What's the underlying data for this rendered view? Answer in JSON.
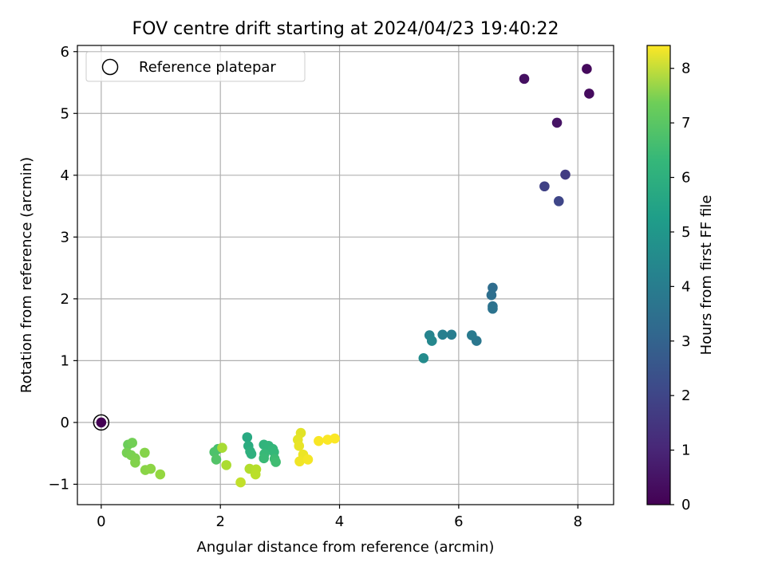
{
  "chart_data": {
    "type": "scatter",
    "title": "FOV centre drift starting at 2024/04/23 19:40:22",
    "xlabel": "Angular distance from reference (arcmin)",
    "ylabel": "Rotation from reference (arcmin)",
    "xlim": [
      -0.4,
      8.6
    ],
    "ylim": [
      -1.33,
      6.1
    ],
    "xticks": [
      0,
      2,
      4,
      6,
      8
    ],
    "xtick_labels": [
      "0",
      "2",
      "4",
      "6",
      "8"
    ],
    "yticks": [
      -1,
      0,
      1,
      2,
      3,
      4,
      5,
      6
    ],
    "ytick_labels": [
      "−1",
      "0",
      "1",
      "2",
      "3",
      "4",
      "5",
      "6"
    ],
    "grid": true,
    "legend": {
      "position": "top-left",
      "entries": [
        {
          "label": "Reference platepar",
          "marker": "open-circle"
        }
      ]
    },
    "colorbar": {
      "label": "Hours from first FF file",
      "colormap": "viridis",
      "range": [
        0,
        8.42
      ],
      "ticks": [
        0,
        1,
        2,
        3,
        4,
        5,
        6,
        7,
        8
      ],
      "tick_labels": [
        "0",
        "1",
        "2",
        "3",
        "4",
        "5",
        "6",
        "7",
        "8"
      ]
    },
    "reference_point": {
      "x": 0,
      "y": 0
    },
    "points": [
      {
        "x": 8.15,
        "y": 5.72,
        "hours": 0.2
      },
      {
        "x": 8.19,
        "y": 5.32,
        "hours": 0.25
      },
      {
        "x": 7.1,
        "y": 5.56,
        "hours": 0.35
      },
      {
        "x": 7.65,
        "y": 4.85,
        "hours": 0.45
      },
      {
        "x": 7.79,
        "y": 4.01,
        "hours": 1.5
      },
      {
        "x": 7.44,
        "y": 3.82,
        "hours": 1.65
      },
      {
        "x": 7.68,
        "y": 3.58,
        "hours": 1.8
      },
      {
        "x": 6.57,
        "y": 2.18,
        "hours": 3.0
      },
      {
        "x": 6.55,
        "y": 2.06,
        "hours": 3.05
      },
      {
        "x": 6.57,
        "y": 1.88,
        "hours": 3.15
      },
      {
        "x": 6.57,
        "y": 1.84,
        "hours": 3.2
      },
      {
        "x": 6.3,
        "y": 1.32,
        "hours": 3.35
      },
      {
        "x": 6.22,
        "y": 1.41,
        "hours": 3.45
      },
      {
        "x": 5.88,
        "y": 1.42,
        "hours": 3.55
      },
      {
        "x": 5.73,
        "y": 1.42,
        "hours": 3.65
      },
      {
        "x": 5.51,
        "y": 1.41,
        "hours": 3.8
      },
      {
        "x": 5.55,
        "y": 1.32,
        "hours": 3.9
      },
      {
        "x": 5.41,
        "y": 1.04,
        "hours": 4.05
      },
      {
        "x": 0.0,
        "y": 0.0,
        "hours": 0.0
      },
      {
        "x": 2.45,
        "y": -0.24,
        "hours": 5.1
      },
      {
        "x": 2.47,
        "y": -0.38,
        "hours": 5.2
      },
      {
        "x": 2.5,
        "y": -0.47,
        "hours": 5.3
      },
      {
        "x": 2.52,
        "y": -0.51,
        "hours": 5.35
      },
      {
        "x": 2.73,
        "y": -0.36,
        "hours": 5.45
      },
      {
        "x": 2.81,
        "y": -0.38,
        "hours": 5.5
      },
      {
        "x": 2.88,
        "y": -0.43,
        "hours": 5.55
      },
      {
        "x": 2.9,
        "y": -0.48,
        "hours": 5.6
      },
      {
        "x": 2.74,
        "y": -0.51,
        "hours": 5.65
      },
      {
        "x": 2.73,
        "y": -0.58,
        "hours": 5.7
      },
      {
        "x": 2.91,
        "y": -0.59,
        "hours": 5.75
      },
      {
        "x": 2.93,
        "y": -0.64,
        "hours": 5.8
      },
      {
        "x": 1.96,
        "y": -0.43,
        "hours": 5.9
      },
      {
        "x": 1.9,
        "y": -0.48,
        "hours": 6.0
      },
      {
        "x": 1.93,
        "y": -0.6,
        "hours": 6.1
      },
      {
        "x": 0.45,
        "y": -0.36,
        "hours": 6.5
      },
      {
        "x": 0.52,
        "y": -0.33,
        "hours": 6.6
      },
      {
        "x": 0.43,
        "y": -0.49,
        "hours": 6.65
      },
      {
        "x": 0.5,
        "y": -0.53,
        "hours": 6.7
      },
      {
        "x": 0.57,
        "y": -0.58,
        "hours": 6.75
      },
      {
        "x": 0.57,
        "y": -0.65,
        "hours": 6.8
      },
      {
        "x": 0.73,
        "y": -0.49,
        "hours": 6.85
      },
      {
        "x": 0.74,
        "y": -0.77,
        "hours": 6.9
      },
      {
        "x": 0.83,
        "y": -0.75,
        "hours": 6.95
      },
      {
        "x": 0.99,
        "y": -0.84,
        "hours": 7.05
      },
      {
        "x": 2.03,
        "y": -0.41,
        "hours": 7.3
      },
      {
        "x": 2.1,
        "y": -0.69,
        "hours": 7.35
      },
      {
        "x": 2.49,
        "y": -0.75,
        "hours": 7.45
      },
      {
        "x": 2.6,
        "y": -0.76,
        "hours": 7.5
      },
      {
        "x": 2.59,
        "y": -0.84,
        "hours": 7.55
      },
      {
        "x": 2.34,
        "y": -0.97,
        "hours": 7.65
      },
      {
        "x": 3.35,
        "y": -0.17,
        "hours": 8.05
      },
      {
        "x": 3.3,
        "y": -0.28,
        "hours": 8.1
      },
      {
        "x": 3.32,
        "y": -0.38,
        "hours": 8.15
      },
      {
        "x": 3.39,
        "y": -0.52,
        "hours": 8.2
      },
      {
        "x": 3.33,
        "y": -0.63,
        "hours": 8.25
      },
      {
        "x": 3.47,
        "y": -0.6,
        "hours": 8.3
      },
      {
        "x": 3.65,
        "y": -0.3,
        "hours": 8.35
      },
      {
        "x": 3.8,
        "y": -0.28,
        "hours": 8.38
      },
      {
        "x": 3.92,
        "y": -0.26,
        "hours": 8.4
      }
    ]
  }
}
